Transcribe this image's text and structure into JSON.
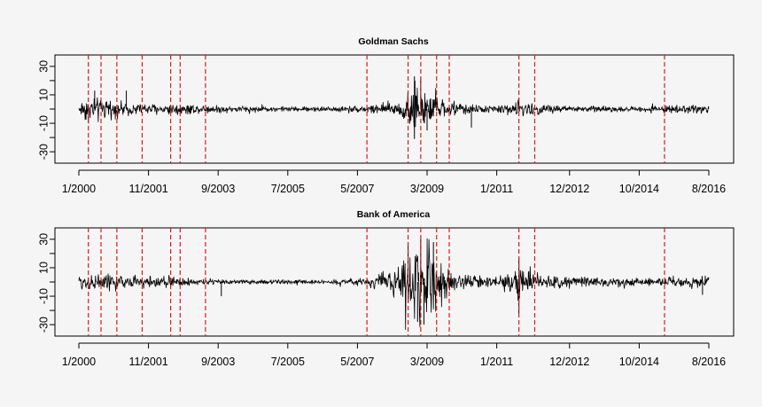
{
  "chart_data": [
    {
      "type": "line",
      "title": "Goldman Sachs",
      "xlabel": "",
      "ylabel": "",
      "x_range": [
        "2000-01",
        "2016-08"
      ],
      "ylim": [
        -38,
        38
      ],
      "y_ticks": [
        30,
        10,
        -10,
        -30
      ],
      "x_ticks": [
        "1/2000",
        "11/2001",
        "9/2003",
        "7/2005",
        "5/2007",
        "3/2009",
        "1/2011",
        "12/2012",
        "10/2014",
        "8/2016"
      ],
      "grid": false,
      "series": [
        {
          "color": "#000000",
          "envelope": [
            {
              "x": "2000-01",
              "amp": 3
            },
            {
              "x": "2000-03",
              "amp": 6
            },
            {
              "x": "2000-09",
              "amp": 5
            },
            {
              "x": "2001-03",
              "amp": 3
            },
            {
              "x": "2002-03",
              "amp": 2.5
            },
            {
              "x": "2002-09",
              "amp": 3
            },
            {
              "x": "2003-03",
              "amp": 2
            },
            {
              "x": "2005-01",
              "amp": 1.2
            },
            {
              "x": "2006-06",
              "amp": 1.2
            },
            {
              "x": "2007-06",
              "amp": 1.6
            },
            {
              "x": "2007-10",
              "amp": 2.5
            },
            {
              "x": "2008-04",
              "amp": 3.5
            },
            {
              "x": "2008-08",
              "amp": 6
            },
            {
              "x": "2008-11",
              "amp": 12
            },
            {
              "x": "2009-03",
              "amp": 8
            },
            {
              "x": "2009-06",
              "amp": 5
            },
            {
              "x": "2010-01",
              "amp": 3
            },
            {
              "x": "2010-06",
              "amp": 2
            },
            {
              "x": "2011-01",
              "amp": 1.6
            },
            {
              "x": "2011-08",
              "amp": 4
            },
            {
              "x": "2012-02",
              "amp": 2.5
            },
            {
              "x": "2013-01",
              "amp": 1.6
            },
            {
              "x": "2014-06",
              "amp": 1.2
            },
            {
              "x": "2015-06",
              "amp": 1.6
            },
            {
              "x": "2016-08",
              "amp": 2.2
            }
          ],
          "spikes": [
            {
              "x": "2000-04",
              "y": -10
            },
            {
              "x": "2000-06",
              "y": 13
            },
            {
              "x": "2001-04",
              "y": 13
            },
            {
              "x": "2008-11",
              "y": 23
            },
            {
              "x": "2008-11",
              "y": -21
            },
            {
              "x": "2009-01",
              "y": 22
            },
            {
              "x": "2009-03",
              "y": -15
            },
            {
              "x": "2010-05",
              "y": -13
            },
            {
              "x": "2011-08",
              "y": 8
            }
          ]
        }
      ],
      "events": [
        "2000-04",
        "2000-08",
        "2001-01",
        "2001-09",
        "2002-06",
        "2002-09",
        "2003-05",
        "2007-08",
        "2008-09",
        "2009-01",
        "2009-06",
        "2009-10",
        "2011-08",
        "2012-01",
        "2015-06"
      ],
      "event_color": "#e0161b"
    },
    {
      "type": "line",
      "title": "Bank of America",
      "xlabel": "",
      "ylabel": "",
      "x_range": [
        "2000-01",
        "2016-08"
      ],
      "ylim": [
        -38,
        38
      ],
      "y_ticks": [
        30,
        10,
        -10,
        -30
      ],
      "x_ticks": [
        "1/2000",
        "11/2001",
        "9/2003",
        "7/2005",
        "5/2007",
        "3/2009",
        "1/2011",
        "12/2012",
        "10/2014",
        "8/2016"
      ],
      "grid": false,
      "series": [
        {
          "color": "#000000",
          "envelope": [
            {
              "x": "2000-01",
              "amp": 4
            },
            {
              "x": "2000-09",
              "amp": 4
            },
            {
              "x": "2001-06",
              "amp": 3
            },
            {
              "x": "2002-06",
              "amp": 3
            },
            {
              "x": "2003-03",
              "amp": 1.6
            },
            {
              "x": "2004-06",
              "amp": 1
            },
            {
              "x": "2006-06",
              "amp": 1
            },
            {
              "x": "2007-06",
              "amp": 1.6
            },
            {
              "x": "2007-10",
              "amp": 3
            },
            {
              "x": "2008-04",
              "amp": 6
            },
            {
              "x": "2008-09",
              "amp": 12
            },
            {
              "x": "2009-01",
              "amp": 22
            },
            {
              "x": "2009-04",
              "amp": 18
            },
            {
              "x": "2009-08",
              "amp": 8
            },
            {
              "x": "2010-01",
              "amp": 4
            },
            {
              "x": "2010-06",
              "amp": 3
            },
            {
              "x": "2011-01",
              "amp": 2.5
            },
            {
              "x": "2011-08",
              "amp": 8
            },
            {
              "x": "2012-03",
              "amp": 4
            },
            {
              "x": "2013-01",
              "amp": 2.5
            },
            {
              "x": "2014-06",
              "amp": 1.8
            },
            {
              "x": "2015-06",
              "amp": 2.2
            },
            {
              "x": "2016-08",
              "amp": 3
            }
          ],
          "spikes": [
            {
              "x": "2003-10",
              "y": -10
            },
            {
              "x": "2008-09",
              "y": 25
            },
            {
              "x": "2008-12",
              "y": -28
            },
            {
              "x": "2009-01",
              "y": 30
            },
            {
              "x": "2009-02",
              "y": -30
            },
            {
              "x": "2009-05",
              "y": 28
            },
            {
              "x": "2011-08",
              "y": 17
            },
            {
              "x": "2011-08",
              "y": -22
            },
            {
              "x": "2016-06",
              "y": -9
            }
          ]
        }
      ],
      "events": [
        "2000-04",
        "2000-08",
        "2001-01",
        "2001-09",
        "2002-06",
        "2002-09",
        "2003-05",
        "2007-08",
        "2008-09",
        "2009-01",
        "2009-06",
        "2009-10",
        "2011-08",
        "2012-01",
        "2015-06"
      ],
      "event_color": "#e0161b"
    }
  ]
}
